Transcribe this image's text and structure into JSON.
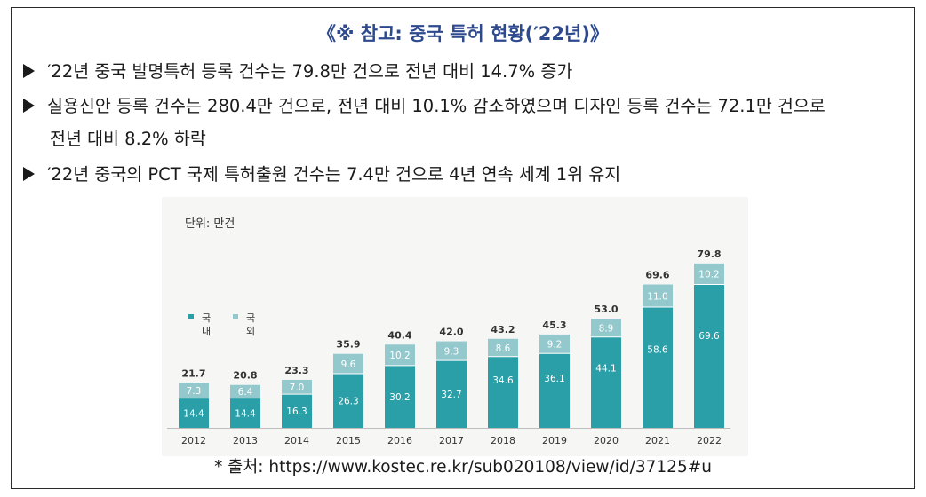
{
  "heading": "《※ 참고: 중국 특허 현황(′22년)》",
  "bullets": [
    "′22년 중국 발명특허 등록 건수는 79.8만 건으로 전년 대비 14.7% 증가",
    "실용신안 등록 건수는 280.4만 건으로, 전년 대비 10.1% 감소하였으며 디자인 등록 건수는 72.1만 건으로",
    "전년 대비 8.2% 하락",
    "′22년 중국의 PCT 국제 특허출원 건수는 7.4만 건으로 4년 연속 세계 1위 유지"
  ],
  "source": "* 출처: https://www.kostec.re.kr/sub020108/view/id/37125#u",
  "colors": {
    "domestic": "#2a9fa8",
    "foreign": "#93c8cc",
    "heading": "#2e4a8f"
  },
  "chart_data": {
    "type": "bar",
    "stacked": true,
    "unit_label": "단위: 만건",
    "categories": [
      "2012",
      "2013",
      "2014",
      "2015",
      "2016",
      "2017",
      "2018",
      "2019",
      "2020",
      "2021",
      "2022"
    ],
    "series": [
      {
        "name": "국내",
        "legend_lines": [
          "국",
          "내"
        ],
        "values": [
          14.4,
          14.4,
          16.3,
          26.3,
          30.2,
          32.7,
          34.6,
          36.1,
          44.1,
          58.6,
          69.6
        ]
      },
      {
        "name": "국외",
        "legend_lines": [
          "국",
          "외"
        ],
        "values": [
          7.3,
          6.4,
          7.0,
          9.6,
          10.2,
          9.3,
          8.6,
          9.2,
          8.9,
          11.0,
          10.2
        ]
      }
    ],
    "totals": [
      "21.7",
      "20.8",
      "23.3",
      "35.9",
      "40.4",
      "42.0",
      "43.2",
      "45.3",
      "53.0",
      "69.6",
      "79.8"
    ],
    "domestic_labels": [
      "14.4",
      "14.4",
      "16.3",
      "26.3",
      "30.2",
      "32.7",
      "34.6",
      "36.1",
      "44.1",
      "58.6",
      "69.6"
    ],
    "foreign_labels": [
      "7.3",
      "6.4",
      "7.0",
      "9.6",
      "10.2",
      "9.3",
      "8.6",
      "9.2",
      "8.9",
      "11.0",
      "10.2"
    ],
    "ylim": [
      0,
      80
    ]
  }
}
